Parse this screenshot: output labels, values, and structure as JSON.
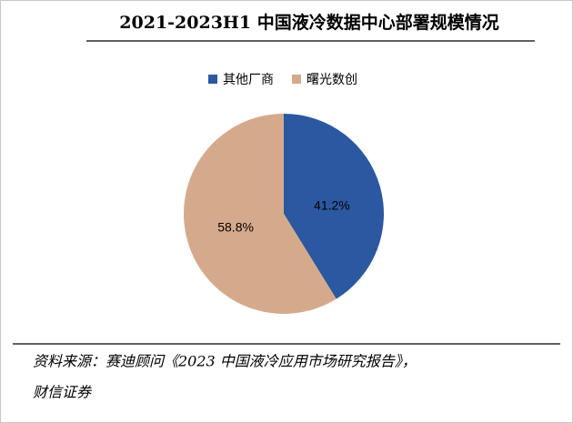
{
  "chart_data": {
    "type": "pie",
    "title": "2021-2023H1 中国液冷数据中心部署规模情况",
    "categories": [
      "其他厂商",
      "曙光数创"
    ],
    "values": [
      41.2,
      58.8
    ],
    "value_labels": [
      "41.2%",
      "58.8%"
    ],
    "colors": [
      "#2b58a0",
      "#d5aa8c"
    ],
    "source": [
      "资料来源：赛迪顾问《2023 中国液冷应用市场研究报告》，",
      "财信证券"
    ]
  }
}
